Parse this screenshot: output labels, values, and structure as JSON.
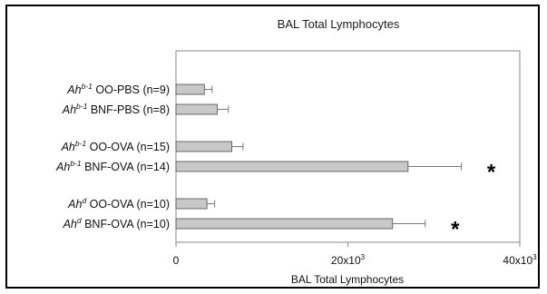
{
  "chart_data": {
    "type": "bar",
    "orientation": "horizontal",
    "title": "BAL Total Lymphocytes",
    "xlabel": "BAL Total Lymphocytes",
    "ylabel": "",
    "xlim": [
      0,
      40000
    ],
    "xticks": [
      {
        "value": 0,
        "base": "0",
        "exp": ""
      },
      {
        "value": 20000,
        "base": "20x10",
        "exp": "3"
      },
      {
        "value": 40000,
        "base": "40x10",
        "exp": "3"
      }
    ],
    "grid": false,
    "bar_color": "#c8c8c8",
    "categories": [
      {
        "italic": "Ah",
        "sup": "b-1",
        "rest": " OO-PBS (n=9)",
        "value": 3300,
        "error": 900,
        "group": 0,
        "annotation": ""
      },
      {
        "italic": "Ah",
        "sup": "b-1",
        "rest": " BNF-PBS (n=8)",
        "value": 4800,
        "error": 1300,
        "group": 0,
        "annotation": ""
      },
      {
        "italic": "Ah",
        "sup": "b-1",
        "rest": " OO-OVA (n=15)",
        "value": 6500,
        "error": 1300,
        "group": 1,
        "annotation": ""
      },
      {
        "italic": "Ah",
        "sup": "b-1",
        "rest": " BNF-OVA (n=14)",
        "value": 27000,
        "error": 6200,
        "group": 1,
        "annotation": "*"
      },
      {
        "italic": "Ah",
        "sup": "d",
        "rest": " OO-OVA (n=10)",
        "value": 3600,
        "error": 900,
        "group": 2,
        "annotation": ""
      },
      {
        "italic": "Ah",
        "sup": "d",
        "rest": " BNF-OVA (n=10)",
        "value": 25200,
        "error": 3800,
        "group": 2,
        "annotation": "*"
      }
    ]
  }
}
